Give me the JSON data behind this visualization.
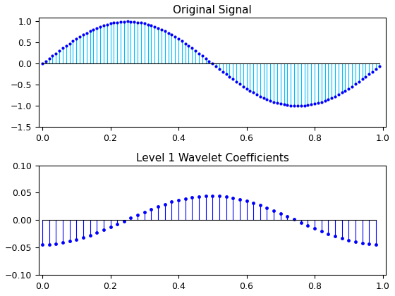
{
  "title1": "Original Signal",
  "title2": "Level 1 Wavelet Coefficients",
  "n_signal": 100,
  "ylim1": [
    -1.5,
    1.1
  ],
  "ylim2": [
    -0.1,
    0.1
  ],
  "xlim": [
    -0.01,
    1.01
  ],
  "stem_line_color1": "#00BFFF",
  "marker_color1": "#0000FF",
  "stem_line_color2": "#0000FF",
  "marker_color2": "#0000FF",
  "baseline_color": "black",
  "background_color": "#ffffff",
  "figsize": [
    5.6,
    4.2
  ],
  "dpi": 100,
  "yticks1": [
    -1.5,
    -1,
    -0.5,
    0,
    0.5,
    1
  ],
  "yticks2": [
    -0.1,
    -0.05,
    0,
    0.05,
    0.1
  ],
  "xticks": [
    0,
    0.2,
    0.4,
    0.6,
    0.8,
    1.0
  ]
}
